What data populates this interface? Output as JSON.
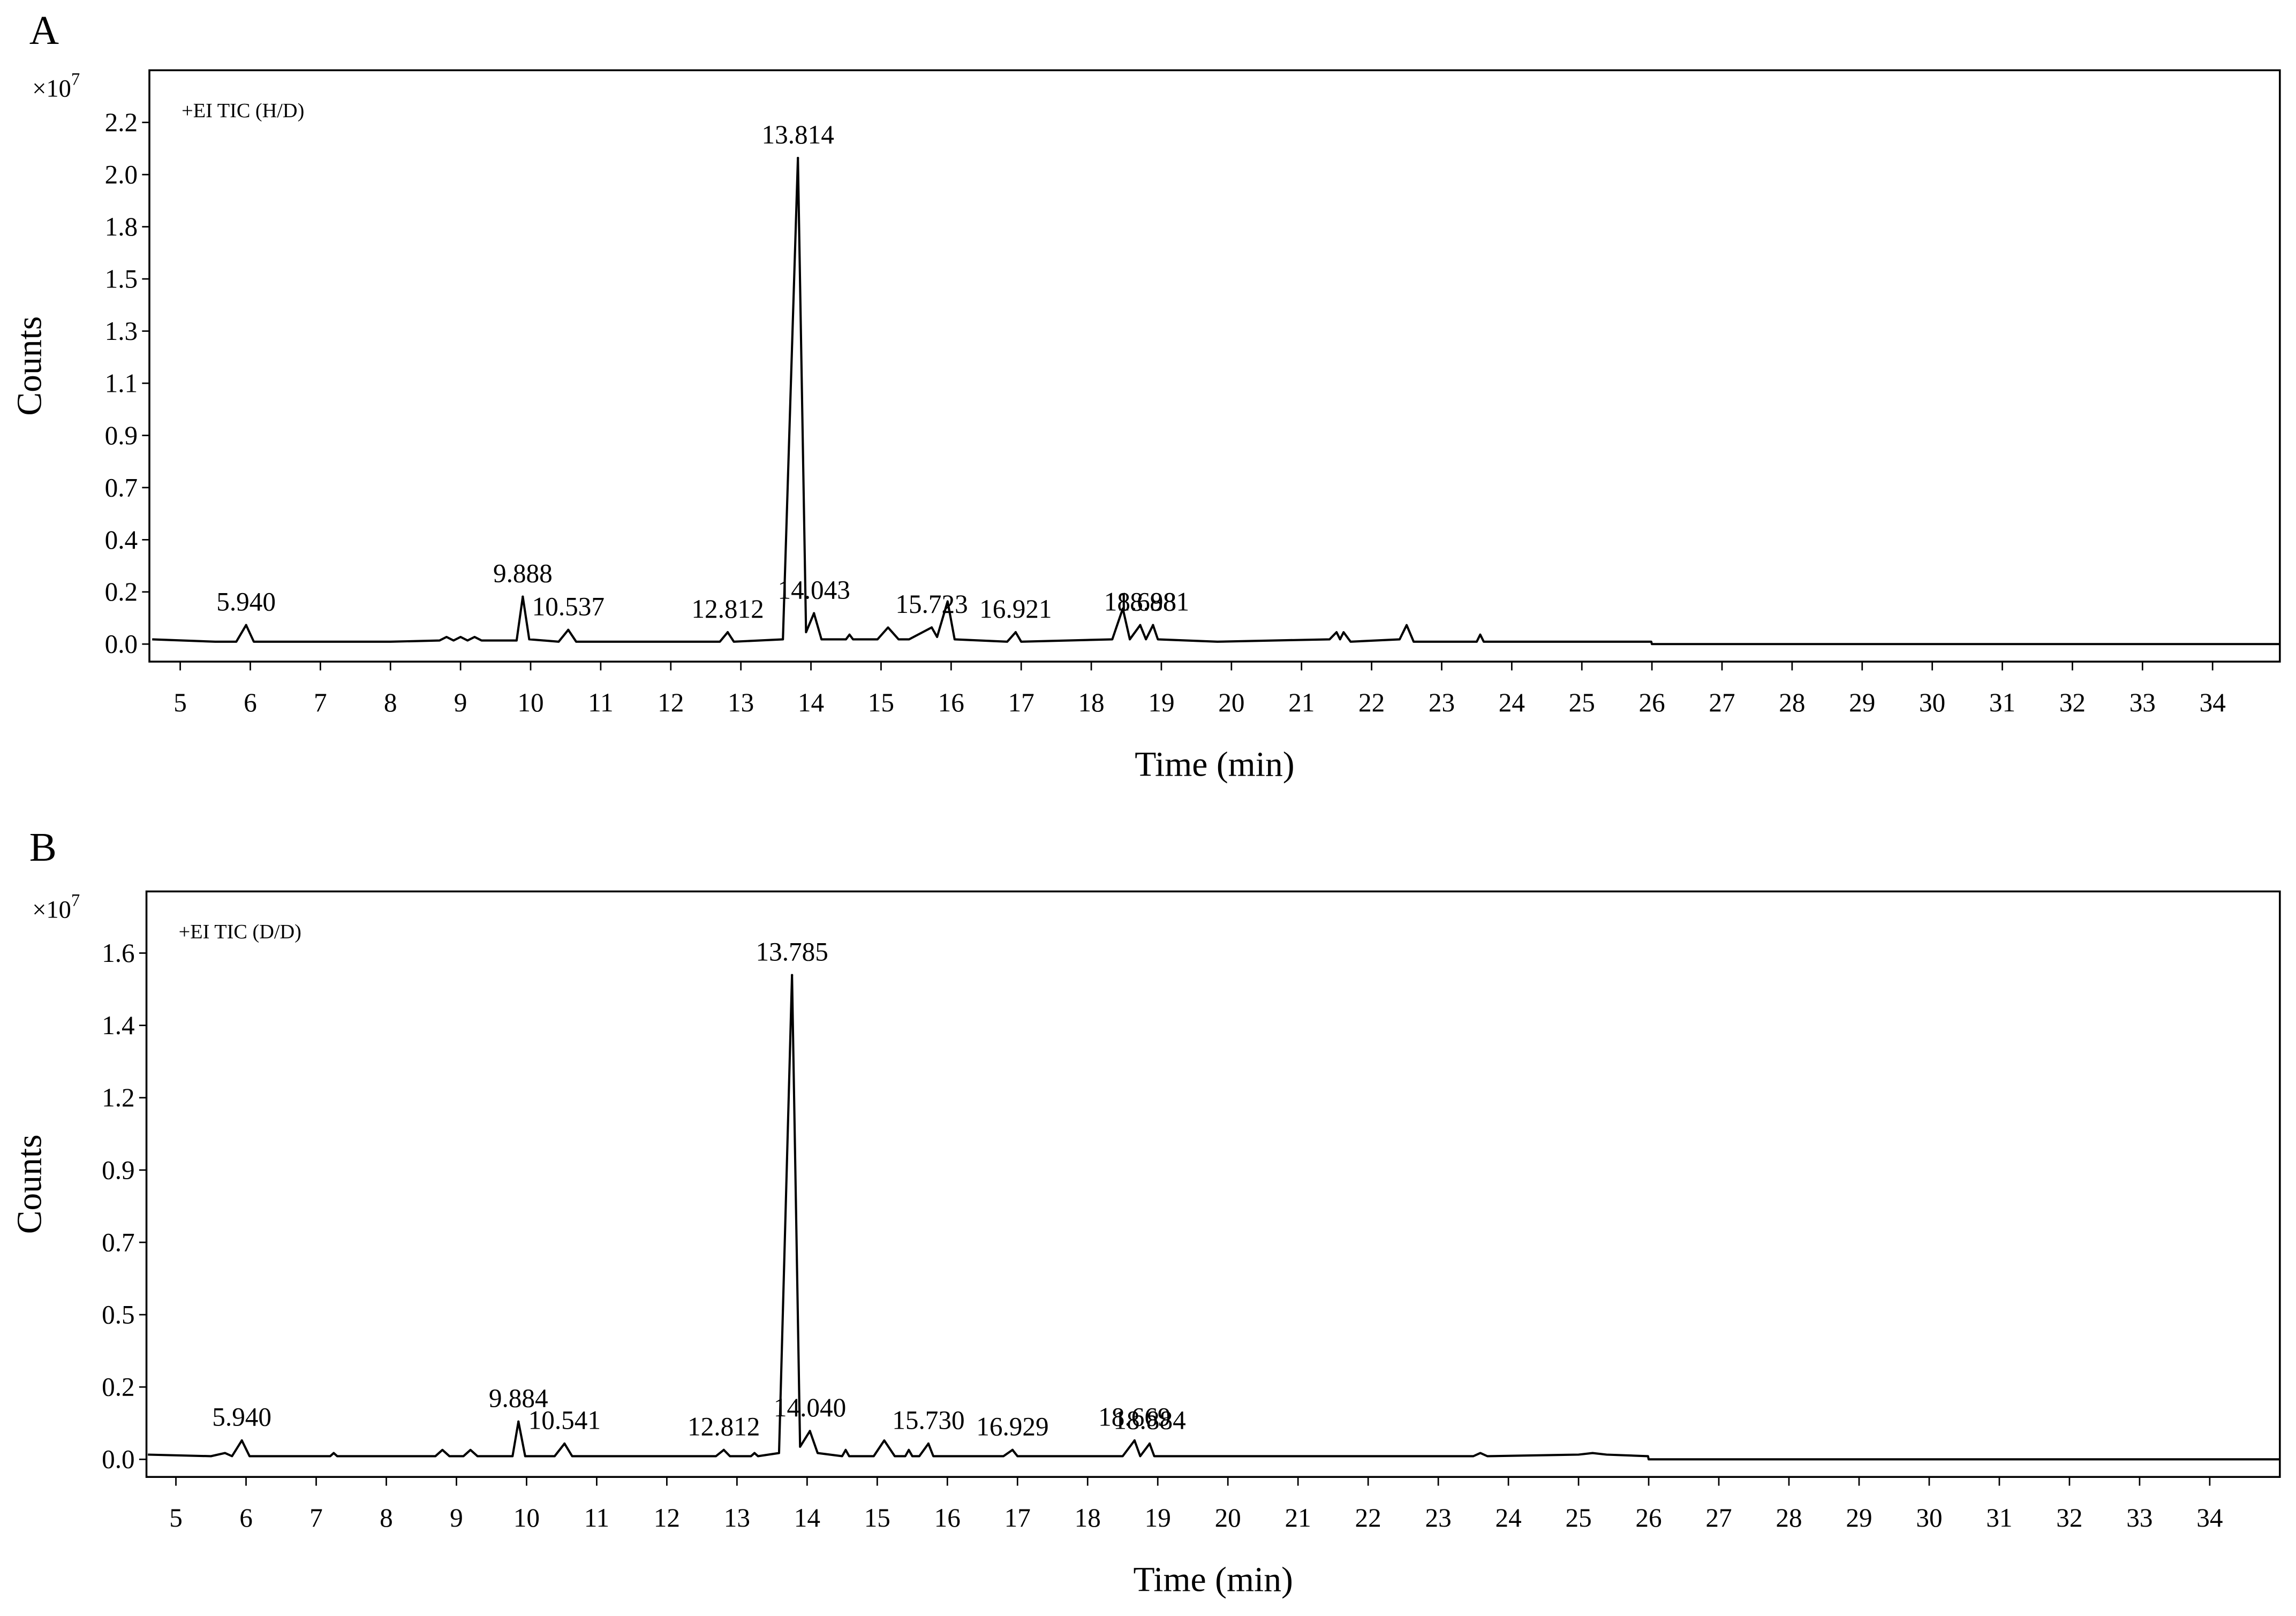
{
  "chart_data": [
    {
      "type": "line",
      "panel_label": "A",
      "annotation": "+EI   TIC   (H/D)",
      "ylabel": "Counts",
      "xlabel": "Time (min)",
      "y_multiplier": {
        "base": "×10",
        "exponent": "7"
      },
      "color": "#000000",
      "xlim": [
        4.56,
        34.96
      ],
      "xticks": [
        5,
        6,
        7,
        8,
        9,
        10,
        11,
        12,
        13,
        14,
        15,
        16,
        17,
        18,
        19,
        20,
        21,
        22,
        23,
        24,
        25,
        26,
        27,
        28,
        29,
        30,
        31,
        32,
        33,
        34
      ],
      "ylim": [
        -0.074,
        2.42
      ],
      "yticks": [
        {
          "value": 0,
          "label": "0.0"
        },
        {
          "value": 0.22,
          "label": "0.2"
        },
        {
          "value": 0.44,
          "label": "0.4"
        },
        {
          "value": 0.66,
          "label": "0.7"
        },
        {
          "value": 0.88,
          "label": "0.9"
        },
        1.1,
        {
          "value": 1.32,
          "label": "1.3"
        },
        {
          "value": 1.54,
          "label": "1.5"
        },
        {
          "value": 1.76,
          "label": "1.8"
        },
        {
          "value": 1.98,
          "label": "2.0"
        },
        2.2
      ],
      "x": [
        4.6,
        5.5,
        5.8,
        5.94,
        6.05,
        7.0,
        8.0,
        8.7,
        8.8,
        8.9,
        9.0,
        9.1,
        9.2,
        9.3,
        9.8,
        9.888,
        9.98,
        10.4,
        10.537,
        10.65,
        12.7,
        12.812,
        12.9,
        13.6,
        13.814,
        13.93,
        14.043,
        14.15,
        14.5,
        14.55,
        14.6,
        14.95,
        15.1,
        15.25,
        15.4,
        15.723,
        15.8,
        15.95,
        16.05,
        16.8,
        16.921,
        17.0,
        18.3,
        18.45,
        18.55,
        18.698,
        18.78,
        18.881,
        18.95,
        19.8,
        21.4,
        21.5,
        21.55,
        21.6,
        21.7,
        22.4,
        22.5,
        22.6,
        23.5,
        23.55,
        23.6,
        25.99,
        26.0,
        34.96
      ],
      "values": [
        0.02,
        0.01,
        0.01,
        0.08,
        0.01,
        0.01,
        0.01,
        0.015,
        0.03,
        0.015,
        0.03,
        0.015,
        0.03,
        0.015,
        0.015,
        0.2,
        0.02,
        0.01,
        0.06,
        0.01,
        0.01,
        0.05,
        0.01,
        0.02,
        2.05,
        0.05,
        0.13,
        0.02,
        0.02,
        0.04,
        0.02,
        0.02,
        0.07,
        0.02,
        0.02,
        0.07,
        0.03,
        0.18,
        0.02,
        0.01,
        0.05,
        0.01,
        0.02,
        0.15,
        0.02,
        0.08,
        0.02,
        0.08,
        0.02,
        0.01,
        0.02,
        0.05,
        0.02,
        0.05,
        0.01,
        0.02,
        0.08,
        0.01,
        0.01,
        0.04,
        0.01,
        0.01,
        0,
        0
      ],
      "peaks": [
        {
          "label": "5.940",
          "x": 5.94,
          "y": 0.08
        },
        {
          "label": "9.888",
          "x": 9.888,
          "y": 0.2
        },
        {
          "label": "10.537",
          "x": 10.537,
          "y": 0.06
        },
        {
          "label": "12.812",
          "x": 12.812,
          "y": 0.05
        },
        {
          "label": "13.814",
          "x": 13.814,
          "y": 2.05
        },
        {
          "label": "14.043",
          "x": 14.043,
          "y": 0.13
        },
        {
          "label": "15.723",
          "x": 15.723,
          "y": 0.07
        },
        {
          "label": "16.921",
          "x": 16.921,
          "y": 0.05
        },
        {
          "label": "18.698",
          "x": 18.698,
          "y": 0.08
        },
        {
          "label": "18.881",
          "x": 18.881,
          "y": 0.08
        }
      ]
    },
    {
      "type": "line",
      "panel_label": "B",
      "annotation": "+EI   TIC   (D/D)",
      "ylabel": "Counts",
      "xlabel": "Time (min)",
      "y_multiplier": {
        "base": "×10",
        "exponent": "7"
      },
      "color": "#000000",
      "xlim": [
        4.58,
        35.0
      ],
      "xticks": [
        5,
        6,
        7,
        8,
        9,
        10,
        11,
        12,
        13,
        14,
        15,
        16,
        17,
        18,
        19,
        20,
        21,
        22,
        23,
        24,
        25,
        26,
        27,
        28,
        29,
        30,
        31,
        32,
        33,
        34
      ],
      "ylim": [
        -0.056,
        1.806
      ],
      "yticks": [
        {
          "value": 0,
          "label": "0.0"
        },
        {
          "value": 0.23,
          "label": "0.2"
        },
        {
          "value": 0.46,
          "label": "0.5"
        },
        {
          "value": 0.69,
          "label": "0.7"
        },
        {
          "value": 0.92,
          "label": "0.9"
        },
        {
          "value": 1.15,
          "label": "1.2"
        },
        {
          "value": 1.38,
          "label": "1.4"
        },
        {
          "value": 1.61,
          "label": "1.6"
        }
      ],
      "x": [
        4.6,
        5.5,
        5.7,
        5.8,
        5.94,
        6.05,
        7.2,
        7.25,
        7.3,
        8.7,
        8.8,
        8.9,
        9.1,
        9.2,
        9.3,
        9.8,
        9.884,
        9.98,
        10.4,
        10.541,
        10.65,
        12.7,
        12.812,
        12.9,
        13.2,
        13.25,
        13.3,
        13.6,
        13.785,
        13.9,
        14.04,
        14.15,
        14.5,
        14.55,
        14.6,
        14.95,
        15.1,
        15.25,
        15.4,
        15.45,
        15.5,
        15.6,
        15.73,
        15.8,
        16.8,
        16.929,
        17.0,
        18.5,
        18.669,
        18.75,
        18.884,
        18.95,
        20.0,
        23.5,
        23.6,
        23.7,
        25.0,
        25.2,
        25.4,
        25.99,
        26.0,
        35.0
      ],
      "values": [
        0.015,
        0.01,
        0.02,
        0.01,
        0.06,
        0.01,
        0.01,
        0.02,
        0.01,
        0.01,
        0.03,
        0.01,
        0.01,
        0.03,
        0.01,
        0.01,
        0.12,
        0.01,
        0.01,
        0.05,
        0.01,
        0.01,
        0.03,
        0.01,
        0.01,
        0.02,
        0.01,
        0.02,
        1.54,
        0.04,
        0.09,
        0.02,
        0.01,
        0.03,
        0.01,
        0.01,
        0.06,
        0.01,
        0.01,
        0.03,
        0.01,
        0.01,
        0.05,
        0.01,
        0.01,
        0.03,
        0.01,
        0.01,
        0.06,
        0.01,
        0.05,
        0.01,
        0.01,
        0.01,
        0.02,
        0.01,
        0.015,
        0.02,
        0.015,
        0.01,
        0,
        0
      ],
      "peaks": [
        {
          "label": "5.940",
          "x": 5.94,
          "y": 0.06
        },
        {
          "label": "9.884",
          "x": 9.884,
          "y": 0.12
        },
        {
          "label": "10.541",
          "x": 10.541,
          "y": 0.05
        },
        {
          "label": "12.812",
          "x": 12.812,
          "y": 0.03
        },
        {
          "label": "13.785",
          "x": 13.785,
          "y": 1.54
        },
        {
          "label": "14.040",
          "x": 14.04,
          "y": 0.09
        },
        {
          "label": "15.730",
          "x": 15.73,
          "y": 0.05
        },
        {
          "label": "16.929",
          "x": 16.929,
          "y": 0.03
        },
        {
          "label": "18.669",
          "x": 18.669,
          "y": 0.06
        },
        {
          "label": "18.884",
          "x": 18.884,
          "y": 0.05
        }
      ]
    }
  ]
}
